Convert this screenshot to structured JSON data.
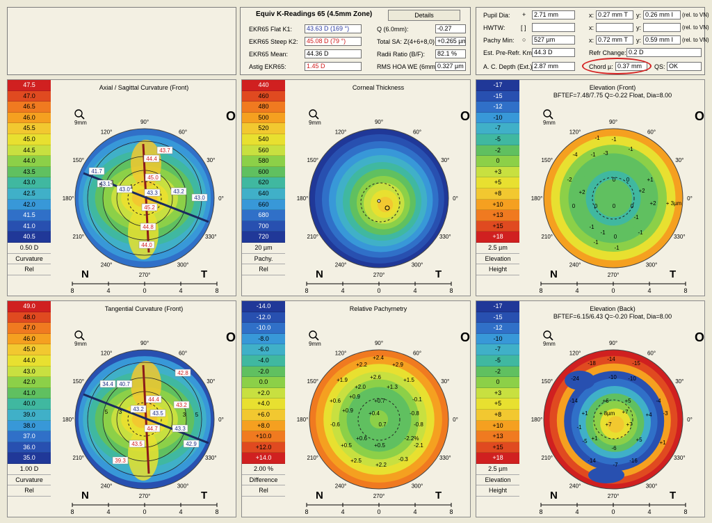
{
  "header": {
    "title": "Equiv K-Readings 65 (4.5mm Zone)",
    "details_button": "Details",
    "rows": [
      {
        "label": "EKR65 Flat K1:",
        "value": "43.63 D  (169 °)",
        "style": "blue"
      },
      {
        "label": "EKR65 Steep K2:",
        "value": "45.08 D  (79 °)",
        "style": "red"
      },
      {
        "label": "EKR65 Mean:",
        "value": "44.36 D",
        "style": ""
      },
      {
        "label": "Astig EKR65:",
        "value": "1.45 D",
        "style": "red"
      }
    ],
    "rows2": [
      {
        "label": "Q (6.0mm):",
        "value": "-0.27"
      },
      {
        "label": "Total SA: Z(4+6+8,0)",
        "value": "+0.265 µm"
      },
      {
        "label": "Radii Ratio (B/F):",
        "value": "82.1 %"
      },
      {
        "label": "RMS HOA WE (6mm)",
        "value": "0.327 µm"
      }
    ]
  },
  "right_info": {
    "pupil_label": "Pupil Dia:",
    "pupil_value": "2.71 mm",
    "pupil_x": "0.27 mm T",
    "pupil_y": "0.26 mm I",
    "hwtw_label": "HWTW:",
    "hwtw_value": "[ ]",
    "pachy_label": "Pachy Min:",
    "pachy_value": "527 µm",
    "pachy_x": "0.72 mm T",
    "pachy_y": "0.59 mm I",
    "est_label": "Est. Pre-Refr. Km:",
    "est_value": "44.3 D",
    "refr_label": "Refr Change:",
    "refr_value": "0.2 D",
    "acd_label": "A. C. Depth (Ext.):",
    "acd_value": "2.87 mm",
    "chord_label": "Chord µ:",
    "chord_value": "0.37 mm",
    "qs_label": "QS:",
    "qs_value": "OK",
    "x_label": "x:",
    "y_label": "y:",
    "rel": "(rel. to VN)"
  },
  "common": {
    "eye": "OS",
    "nasal": "N",
    "temporal": "T",
    "zoom": "9mm",
    "ticks": [
      "8",
      "4",
      "0",
      "4",
      "8"
    ],
    "angles": [
      "90°",
      "60°",
      "30°",
      "0°",
      "330°",
      "300°",
      "270°",
      "240°",
      "210°",
      "180°",
      "150°",
      "120°"
    ]
  },
  "panels": [
    {
      "title": "Axial / Sagittal Curvature (Front)",
      "scale": [
        "47.5",
        "47.0",
        "46.5",
        "46.0",
        "45.5",
        "45.0",
        "44.5",
        "44.0",
        "43.5",
        "43.0",
        "42.5",
        "42.0",
        "41.5",
        "41.0",
        "40.5"
      ],
      "foot": [
        "0.50 D",
        "Curvature",
        "Rel"
      ],
      "vals": [
        {
          "t": "43.7",
          "c": "r"
        },
        {
          "t": "44.4",
          "c": "r"
        },
        {
          "t": "41.7",
          "c": "b"
        },
        {
          "t": "45.0",
          "c": "r"
        },
        {
          "t": "43.1",
          "c": "b"
        },
        {
          "t": "43.0",
          "c": "b"
        },
        {
          "t": "43.3",
          "c": "b"
        },
        {
          "t": "43.2",
          "c": "b"
        },
        {
          "t": "43.0",
          "c": "b"
        },
        {
          "t": "45.2",
          "c": "r"
        },
        {
          "t": "44.8",
          "c": "r"
        },
        {
          "t": "44.0",
          "c": "r"
        },
        {
          "t": "5",
          "c": "k"
        },
        {
          "t": "3",
          "c": "k"
        },
        {
          "t": "1",
          "c": "k"
        }
      ]
    },
    {
      "title": "Corneal Thickness",
      "scale": [
        "440",
        "460",
        "480",
        "500",
        "520",
        "540",
        "560",
        "580",
        "600",
        "620",
        "640",
        "660",
        "680",
        "700",
        "720"
      ],
      "foot": [
        "20 µm",
        "Pachy.",
        "Rel"
      ],
      "vals": []
    },
    {
      "title": "Elevation (Front)",
      "subtitle": "BFTEF=7.48/7.75 Q=-0.22 Float, Dia=8.00",
      "scale": [
        "-17",
        "-15",
        "-12",
        "-10",
        "-7",
        "-5",
        "-2",
        "0",
        "+3",
        "+5",
        "+8",
        "+10",
        "+13",
        "+15",
        "+18"
      ],
      "foot": [
        "2.5 µm",
        "Elevation",
        "Height"
      ],
      "vals": [
        {
          "t": "-1",
          "c": "k"
        },
        {
          "t": "-1",
          "c": "k"
        },
        {
          "t": "-1",
          "c": "k"
        },
        {
          "t": "-4",
          "c": "k"
        },
        {
          "t": "-1",
          "c": "k"
        },
        {
          "t": "-3",
          "c": "k"
        },
        {
          "t": "-2",
          "c": "k"
        },
        {
          "t": "0",
          "c": "k"
        },
        {
          "t": "0",
          "c": "k"
        },
        {
          "t": "+1",
          "c": "k"
        },
        {
          "t": "+2",
          "c": "k"
        },
        {
          "t": "+2",
          "c": "k"
        },
        {
          "t": "0",
          "c": "k"
        },
        {
          "t": "0",
          "c": "k"
        },
        {
          "t": "0",
          "c": "k"
        },
        {
          "t": "0",
          "c": "k"
        },
        {
          "t": "+2",
          "c": "k"
        },
        {
          "t": "+ 3µm",
          "c": "k"
        },
        {
          "t": "-1",
          "c": "k"
        },
        {
          "t": "-1",
          "c": "k"
        },
        {
          "t": "0",
          "c": "k"
        },
        {
          "t": "-1",
          "c": "k"
        },
        {
          "t": "-1",
          "c": "k"
        },
        {
          "t": "-1",
          "c": "k"
        },
        {
          "t": "-1",
          "c": "k"
        }
      ]
    },
    {
      "title": "Tangential Curvature (Front)",
      "scale": [
        "49.0",
        "48.0",
        "47.0",
        "46.0",
        "45.0",
        "44.0",
        "43.0",
        "42.0",
        "41.0",
        "40.0",
        "39.0",
        "38.0",
        "37.0",
        "36.0",
        "35.0"
      ],
      "foot": [
        "1.00 D",
        "Curvature",
        "Rel"
      ],
      "vals": [
        {
          "t": "42.8",
          "c": "r"
        },
        {
          "t": "34.4",
          "c": "b"
        },
        {
          "t": "40.7",
          "c": "b"
        },
        {
          "t": "44.4",
          "c": "r"
        },
        {
          "t": "43.2",
          "c": "r"
        },
        {
          "t": "43.2",
          "c": "b"
        },
        {
          "t": "43.5",
          "c": "b"
        },
        {
          "t": "44.7",
          "c": "r"
        },
        {
          "t": "43.3",
          "c": "b"
        },
        {
          "t": "43.5",
          "c": "r"
        },
        {
          "t": "42.9",
          "c": "b"
        },
        {
          "t": "39.3",
          "c": "r"
        },
        {
          "t": "5",
          "c": "k"
        },
        {
          "t": "3",
          "c": "k"
        },
        {
          "t": "3",
          "c": "k"
        },
        {
          "t": "5",
          "c": "k"
        }
      ]
    },
    {
      "title": "Relative Pachymetry",
      "scale": [
        "-14.0",
        "-12.0",
        "-10.0",
        "-8.0",
        "-6.0",
        "-4.0",
        "-2.0",
        "0.0",
        "+2.0",
        "+4.0",
        "+6.0",
        "+8.0",
        "+10.0",
        "+12.0",
        "+14.0"
      ],
      "foot": [
        "2.00 %",
        "Difference",
        "Rel"
      ],
      "vals": [
        {
          "t": "+2.4",
          "c": "k"
        },
        {
          "t": "+2.2",
          "c": "k"
        },
        {
          "t": "+2.9",
          "c": "k"
        },
        {
          "t": "+1.9",
          "c": "k"
        },
        {
          "t": "+2.6",
          "c": "k"
        },
        {
          "t": "+1.5",
          "c": "k"
        },
        {
          "t": "+2.0",
          "c": "k"
        },
        {
          "t": "+1.3",
          "c": "k"
        },
        {
          "t": "+0.6",
          "c": "k"
        },
        {
          "t": "+0.9",
          "c": "k"
        },
        {
          "t": "+0.7",
          "c": "k"
        },
        {
          "t": "-0.1",
          "c": "k"
        },
        {
          "t": "+0.9",
          "c": "k"
        },
        {
          "t": "+0.4",
          "c": "k"
        },
        {
          "t": "-0.8",
          "c": "k"
        },
        {
          "t": "-0.6",
          "c": "k"
        },
        {
          "t": "0.7",
          "c": "k"
        },
        {
          "t": "-0.8",
          "c": "k"
        },
        {
          "t": "+0.5",
          "c": "k"
        },
        {
          "t": "+0.6",
          "c": "k"
        },
        {
          "t": "+0.5",
          "c": "k"
        },
        {
          "t": "-2.2%",
          "c": "k"
        },
        {
          "t": "-2.1",
          "c": "k"
        },
        {
          "t": "+2.5",
          "c": "k"
        },
        {
          "t": "+2.2",
          "c": "k"
        },
        {
          "t": "-0.3",
          "c": "k"
        }
      ]
    },
    {
      "title": "Elevation (Back)",
      "subtitle": "BFTEF=6.15/6.43 Q=-0.20 Float, Dia=8.00",
      "scale": [
        "-17",
        "-15",
        "-12",
        "-10",
        "-7",
        "-5",
        "-2",
        "0",
        "+3",
        "+5",
        "+8",
        "+10",
        "+13",
        "+15",
        "+18"
      ],
      "foot": [
        "2.5 µm",
        "Elevation",
        "Height"
      ],
      "vals": [
        {
          "t": "-18",
          "c": "k"
        },
        {
          "t": "-14",
          "c": "k"
        },
        {
          "t": "-15",
          "c": "k"
        },
        {
          "t": "-24",
          "c": "k"
        },
        {
          "t": "-10",
          "c": "k"
        },
        {
          "t": "-10",
          "c": "k"
        },
        {
          "t": "-14",
          "c": "k"
        },
        {
          "t": "+6",
          "c": "k"
        },
        {
          "t": "+5",
          "c": "k"
        },
        {
          "t": "-4",
          "c": "k"
        },
        {
          "t": "+1",
          "c": "k"
        },
        {
          "t": "+ 8µm",
          "c": "k"
        },
        {
          "t": "+7",
          "c": "k"
        },
        {
          "t": "+4",
          "c": "k"
        },
        {
          "t": "-3",
          "c": "k"
        },
        {
          "t": "+7",
          "c": "k"
        },
        {
          "t": "+7",
          "c": "k"
        },
        {
          "t": "-1",
          "c": "k"
        },
        {
          "t": "-5",
          "c": "k"
        },
        {
          "t": "+1",
          "c": "k"
        },
        {
          "t": "-6",
          "c": "k"
        },
        {
          "t": "+5",
          "c": "k"
        },
        {
          "t": "+1",
          "c": "k"
        },
        {
          "t": "-14",
          "c": "k"
        },
        {
          "t": "-7",
          "c": "k"
        },
        {
          "t": "-16",
          "c": "k"
        }
      ]
    }
  ]
}
